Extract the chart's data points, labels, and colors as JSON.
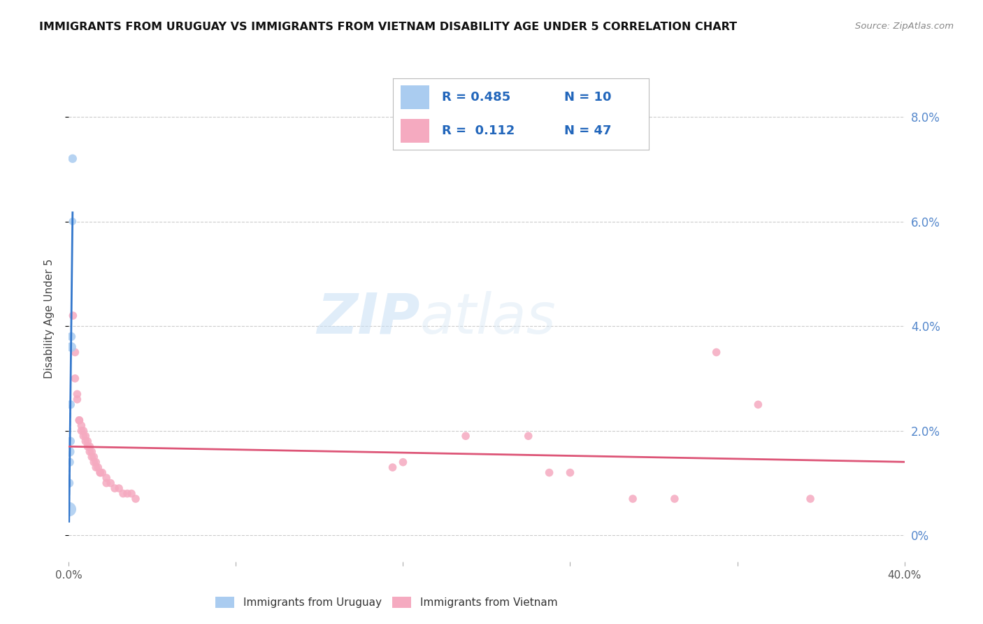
{
  "title": "IMMIGRANTS FROM URUGUAY VS IMMIGRANTS FROM VIETNAM DISABILITY AGE UNDER 5 CORRELATION CHART",
  "source": "Source: ZipAtlas.com",
  "ylabel": "Disability Age Under 5",
  "right_ytick_labels": [
    "0%",
    "2.0%",
    "4.0%",
    "6.0%",
    "8.0%"
  ],
  "right_ytick_values": [
    0.0,
    0.02,
    0.04,
    0.06,
    0.08
  ],
  "xlim": [
    0.0,
    0.4
  ],
  "ylim": [
    -0.005,
    0.088
  ],
  "xtick_labels": [
    "0.0%",
    "",
    "",
    "",
    "",
    "40.0%"
  ],
  "xtick_values": [
    0.0,
    0.08,
    0.16,
    0.24,
    0.32,
    0.4
  ],
  "watermark": "ZIPatlas",
  "legend_blue_r": "R = 0.485",
  "legend_blue_n": "N = 10",
  "legend_pink_r": "R =  0.112",
  "legend_pink_n": "N = 47",
  "blue_color": "#aaccf0",
  "blue_line_color": "#3377cc",
  "pink_color": "#f5aac0",
  "pink_line_color": "#dd5577",
  "uruguay_points": [
    [
      0.0018,
      0.072
    ],
    [
      0.0018,
      0.06
    ],
    [
      0.0012,
      0.038
    ],
    [
      0.0012,
      0.036
    ],
    [
      0.0008,
      0.025
    ],
    [
      0.0008,
      0.018
    ],
    [
      0.0004,
      0.016
    ],
    [
      0.0004,
      0.014
    ],
    [
      0.0002,
      0.01
    ],
    [
      0.0001,
      0.005
    ]
  ],
  "uruguay_sizes": [
    80,
    60,
    80,
    100,
    80,
    80,
    100,
    80,
    80,
    220
  ],
  "vietnam_points": [
    [
      0.002,
      0.042
    ],
    [
      0.003,
      0.035
    ],
    [
      0.003,
      0.03
    ],
    [
      0.004,
      0.027
    ],
    [
      0.004,
      0.026
    ],
    [
      0.005,
      0.022
    ],
    [
      0.005,
      0.022
    ],
    [
      0.006,
      0.021
    ],
    [
      0.006,
      0.02
    ],
    [
      0.007,
      0.02
    ],
    [
      0.007,
      0.019
    ],
    [
      0.008,
      0.019
    ],
    [
      0.008,
      0.018
    ],
    [
      0.009,
      0.018
    ],
    [
      0.009,
      0.017
    ],
    [
      0.01,
      0.017
    ],
    [
      0.01,
      0.016
    ],
    [
      0.011,
      0.016
    ],
    [
      0.011,
      0.015
    ],
    [
      0.012,
      0.015
    ],
    [
      0.012,
      0.014
    ],
    [
      0.013,
      0.014
    ],
    [
      0.013,
      0.013
    ],
    [
      0.014,
      0.013
    ],
    [
      0.015,
      0.012
    ],
    [
      0.015,
      0.012
    ],
    [
      0.016,
      0.012
    ],
    [
      0.018,
      0.011
    ],
    [
      0.018,
      0.01
    ],
    [
      0.02,
      0.01
    ],
    [
      0.022,
      0.009
    ],
    [
      0.024,
      0.009
    ],
    [
      0.026,
      0.008
    ],
    [
      0.028,
      0.008
    ],
    [
      0.03,
      0.008
    ],
    [
      0.032,
      0.007
    ],
    [
      0.155,
      0.013
    ],
    [
      0.16,
      0.014
    ],
    [
      0.19,
      0.019
    ],
    [
      0.22,
      0.019
    ],
    [
      0.23,
      0.012
    ],
    [
      0.24,
      0.012
    ],
    [
      0.27,
      0.007
    ],
    [
      0.29,
      0.007
    ],
    [
      0.31,
      0.035
    ],
    [
      0.33,
      0.025
    ],
    [
      0.355,
      0.007
    ]
  ],
  "vietnam_sizes": [
    70,
    70,
    70,
    70,
    70,
    70,
    70,
    70,
    70,
    70,
    70,
    70,
    70,
    70,
    70,
    70,
    70,
    70,
    70,
    70,
    70,
    70,
    70,
    70,
    70,
    70,
    70,
    70,
    70,
    70,
    70,
    70,
    70,
    70,
    70,
    70,
    70,
    70,
    70,
    70,
    70,
    70,
    70,
    70,
    70,
    70,
    70
  ]
}
